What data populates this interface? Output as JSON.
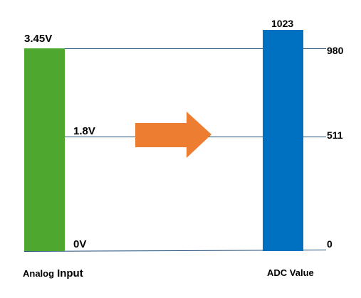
{
  "analog": {
    "max_label": "3.45V",
    "mid_label": "1.8V",
    "min_label": "0V",
    "caption_prefix": "Analog",
    "caption_suffix": "Input",
    "bar_color": "#4ea72e"
  },
  "adc": {
    "top_label": "1023",
    "max_label": "980",
    "mid_label": "511",
    "min_label": "0",
    "caption": "ADC Value",
    "bar_color": "#0070c0"
  },
  "arrow": {
    "color": "#ed7d31",
    "icon": "right-arrow-icon"
  },
  "line_color": "#1f4e79"
}
